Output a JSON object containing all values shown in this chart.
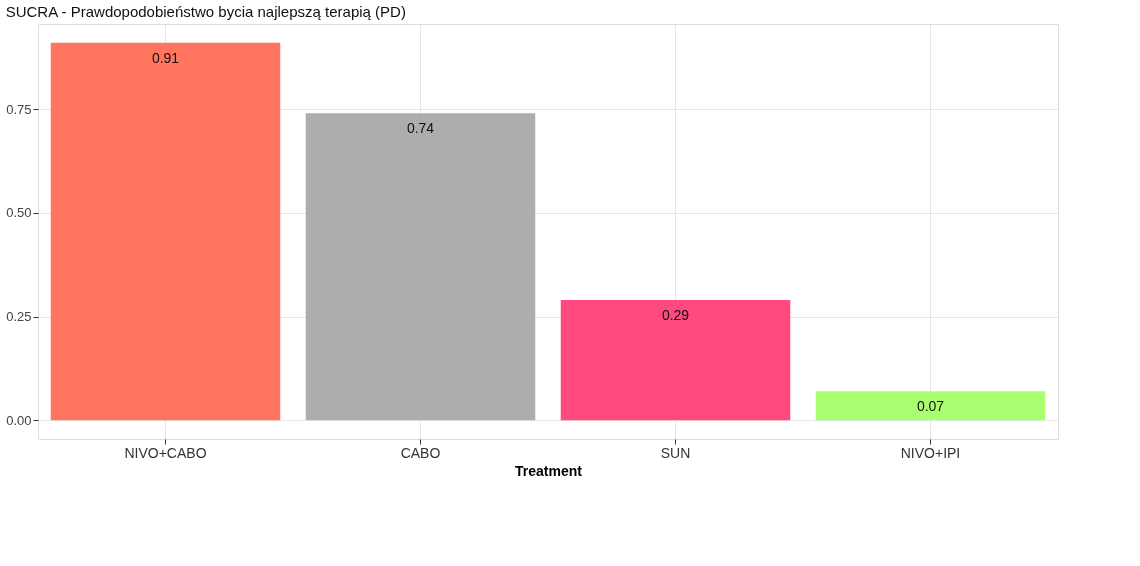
{
  "chart_data": {
    "type": "bar",
    "title": "SUCRA - Prawdopodobieństwo bycia najlepszą terapią (PD)",
    "xlabel": "Treatment",
    "categories": [
      "NIVO+CABO",
      "CABO",
      "SUN",
      "NIVO+IPI"
    ],
    "values": [
      0.91,
      0.74,
      0.29,
      0.07
    ],
    "colors": [
      "#ff7560",
      "#adadad",
      "#ff4a80",
      "#aaff70"
    ],
    "ylim": [
      -0.045,
      0.955
    ],
    "yticks": [
      {
        "value": 0,
        "label": "0.00"
      },
      {
        "value": 0.25,
        "label": "0.25"
      },
      {
        "value": 0.5,
        "label": "0.50"
      },
      {
        "value": 0.75,
        "label": "0.75"
      }
    ],
    "grid": true,
    "data_labels": true
  }
}
